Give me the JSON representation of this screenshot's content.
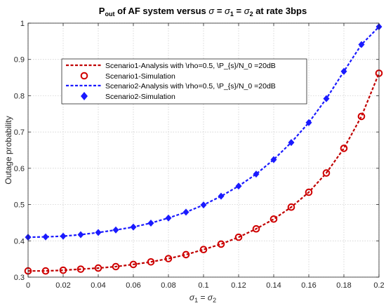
{
  "chart_data": {
    "type": "line",
    "title": {
      "p1": "P",
      "sub1": "out",
      "p2": " of AF system versus ",
      "g1": "σ",
      "eq1": " = ",
      "g2": "σ",
      "sub2": "1",
      "eq2": " = ",
      "g3": "σ",
      "sub3": "2",
      "tail": " at rate 3bps"
    },
    "xlabel": {
      "g1": "σ",
      "sub1": "1",
      "eq": " = ",
      "g2": "σ",
      "sub2": "2"
    },
    "ylabel": "Outage probability",
    "xlim": [
      0,
      0.2
    ],
    "ylim": [
      0.3,
      1
    ],
    "xticks": [
      "0",
      "0.02",
      "0.04",
      "0.06",
      "0.08",
      "0.1",
      "0.12",
      "0.14",
      "0.16",
      "0.18",
      "0.2"
    ],
    "yticks": [
      "0.3",
      "0.4",
      "0.5",
      "0.6",
      "0.7",
      "0.8",
      "0.9",
      "1"
    ],
    "xtick_values": [
      0,
      0.02,
      0.04,
      0.06,
      0.08,
      0.1,
      0.12,
      0.14,
      0.16,
      0.18,
      0.2
    ],
    "ytick_values": [
      0.3,
      0.4,
      0.5,
      0.6,
      0.7,
      0.8,
      0.9,
      1
    ],
    "grid": true,
    "legend_position": "upper-left",
    "x": [
      0,
      0.01,
      0.02,
      0.03,
      0.04,
      0.05,
      0.06,
      0.07,
      0.08,
      0.09,
      0.1,
      0.11,
      0.12,
      0.13,
      0.14,
      0.15,
      0.16,
      0.17,
      0.18,
      0.19,
      0.2
    ],
    "series": [
      {
        "name": "Scenario1-Analysis with \\rho=0.5, \\P_{s}/N_0 =20dB",
        "style": "dashed",
        "marker": "none",
        "color": "#c00000",
        "values": [
          0.317,
          0.317,
          0.319,
          0.322,
          0.325,
          0.329,
          0.335,
          0.342,
          0.351,
          0.362,
          0.376,
          0.391,
          0.41,
          0.433,
          0.46,
          0.493,
          0.534,
          0.587,
          0.655,
          0.743,
          0.862
        ]
      },
      {
        "name": "Scenario1-Simulation",
        "style": "none",
        "marker": "open-circle",
        "color": "#d00000",
        "values": [
          0.317,
          0.317,
          0.319,
          0.322,
          0.325,
          0.329,
          0.335,
          0.342,
          0.351,
          0.362,
          0.376,
          0.391,
          0.41,
          0.433,
          0.46,
          0.493,
          0.534,
          0.587,
          0.655,
          0.743,
          0.862
        ]
      },
      {
        "name": "Scenario2-Analysis with \\rho=0.5, \\P_{s}/N_0 =20dB",
        "style": "dashed",
        "marker": "none",
        "color": "#1a1aff",
        "values": [
          0.41,
          0.411,
          0.413,
          0.417,
          0.423,
          0.43,
          0.438,
          0.449,
          0.463,
          0.479,
          0.499,
          0.523,
          0.551,
          0.584,
          0.624,
          0.671,
          0.726,
          0.792,
          0.867,
          0.941,
          0.99
        ]
      },
      {
        "name": "Scenario2-Simulation",
        "style": "none",
        "marker": "filled-diamond",
        "color": "#1a1aff",
        "values": [
          0.41,
          0.411,
          0.413,
          0.417,
          0.423,
          0.43,
          0.438,
          0.449,
          0.463,
          0.479,
          0.499,
          0.523,
          0.551,
          0.584,
          0.624,
          0.671,
          0.726,
          0.792,
          0.867,
          0.941,
          0.99
        ]
      }
    ]
  }
}
